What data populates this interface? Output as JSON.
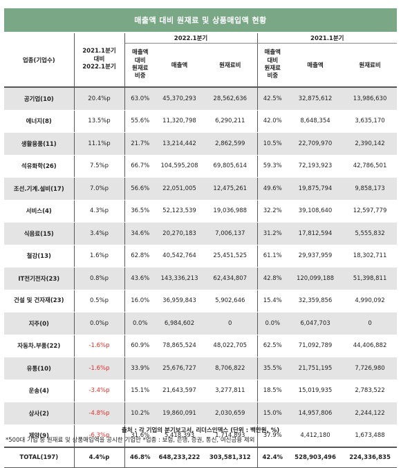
{
  "title": "매출액 대비 원재료 및 상품매입액 현황",
  "header": {
    "industry": "업종(기업수)",
    "change": [
      "2021.1분기",
      "대비",
      "2022.1분기"
    ],
    "period_2022": "2022.1분기",
    "period_2021": "2021.1분기",
    "ratio": [
      "매출액",
      "대비",
      "원재료",
      "비중"
    ],
    "sales": "매출액",
    "material": "원재료비"
  },
  "rows": [
    {
      "industry": "공기업(10)",
      "change": "20.4%p",
      "neg": false,
      "r22": "63.0%",
      "s22": "45,370,293",
      "m22": "28,562,636",
      "r21": "42.5%",
      "s21": "32,875,612",
      "m21": "13,986,630"
    },
    {
      "industry": "에너지(8)",
      "change": "13.5%p",
      "neg": false,
      "r22": "55.6%",
      "s22": "11,320,798",
      "m22": "6,290,211",
      "r21": "42.0%",
      "s21": "8,648,354",
      "m21": "3,635,170"
    },
    {
      "industry": "생활용품(11)",
      "change": "11.1%p",
      "neg": false,
      "r22": "21.7%",
      "s22": "13,214,442",
      "m22": "2,862,599",
      "r21": "10.5%",
      "s21": "22,709,970",
      "m21": "2,390,142"
    },
    {
      "industry": "석유화학(26)",
      "change": "7.5%p",
      "neg": false,
      "r22": "66.7%",
      "s22": "104,595,208",
      "m22": "69,805,614",
      "r21": "59.3%",
      "s21": "72,193,923",
      "m21": "42,786,501"
    },
    {
      "industry": "조선.기계.설비(17)",
      "change": "7.0%p",
      "neg": false,
      "r22": "56.6%",
      "s22": "22,051,005",
      "m22": "12,475,261",
      "r21": "49.6%",
      "s21": "19,875,794",
      "m21": "9,858,173"
    },
    {
      "industry": "서비스(4)",
      "change": "4.3%p",
      "neg": false,
      "r22": "36.5%",
      "s22": "52,123,539",
      "m22": "19,036,988",
      "r21": "32.2%",
      "s21": "39,108,640",
      "m21": "12,597,779"
    },
    {
      "industry": "식음료(15)",
      "change": "3.4%p",
      "neg": false,
      "r22": "34.6%",
      "s22": "20,270,183",
      "m22": "7,006,137",
      "r21": "31.2%",
      "s21": "17,812,594",
      "m21": "5,555,832"
    },
    {
      "industry": "철강(13)",
      "change": "1.6%p",
      "neg": false,
      "r22": "62.8%",
      "s22": "40,542,764",
      "m22": "25,451,525",
      "r21": "61.1%",
      "s21": "29,937,959",
      "m21": "18,302,711"
    },
    {
      "industry": "IT전기전자(23)",
      "change": "0.8%p",
      "neg": false,
      "r22": "43.6%",
      "s22": "143,336,213",
      "m22": "62,434,807",
      "r21": "42.8%",
      "s21": "120,099,188",
      "m21": "51,398,811"
    },
    {
      "industry": "건설 및 건자재(23)",
      "change": "0.5%p",
      "neg": false,
      "r22": "16.0%",
      "s22": "36,959,843",
      "m22": "5,902,646",
      "r21": "15.4%",
      "s21": "32,359,856",
      "m21": "4,990,092"
    },
    {
      "industry": "지주(0)",
      "change": "0.0%p",
      "neg": false,
      "r22": "0.0%",
      "s22": "6,984,602",
      "m22": "0",
      "r21": "0.0%",
      "s21": "6,047,703",
      "m21": "0"
    },
    {
      "industry": "자동차.부품(22)",
      "change": "-1.6%p",
      "neg": true,
      "r22": "60.9%",
      "s22": "78,865,524",
      "m22": "48,022,705",
      "r21": "62.5%",
      "s21": "71,092,789",
      "m21": "44,406,882"
    },
    {
      "industry": "유통(10)",
      "change": "-1.6%p",
      "neg": true,
      "r22": "33.9%",
      "s22": "25,676,727",
      "m22": "8,706,822",
      "r21": "35.5%",
      "s21": "21,751,195",
      "m21": "7,726,980"
    },
    {
      "industry": "운송(4)",
      "change": "-3.4%p",
      "neg": true,
      "r22": "15.1%",
      "s22": "21,643,597",
      "m22": "3,277,811",
      "r21": "18.5%",
      "s21": "15,019,935",
      "m21": "2,783,522"
    },
    {
      "industry": "상사(2)",
      "change": "-4.8%p",
      "neg": true,
      "r22": "10.2%",
      "s22": "19,860,091",
      "m22": "2,030,659",
      "r21": "15.0%",
      "s21": "14,957,806",
      "m21": "2,244,122"
    },
    {
      "industry": "제약(9)",
      "change": "-6.3%p",
      "neg": true,
      "r22": "31.6%",
      "s22": "5,418,393",
      "m22": "1,714,893",
      "r21": "37.9%",
      "s21": "4,412,180",
      "m21": "1,673,488"
    }
  ],
  "total": {
    "industry": "TOTAL(197)",
    "change": "4.4%p",
    "r22": "46.8%",
    "s22": "648,233,222",
    "m22": "303,581,312",
    "r21": "42.4%",
    "s21": "528,903,496",
    "m21": "224,336,835"
  },
  "footer": {
    "source": "출처 : 각 기업의 분기보고서, 리더스인덱스 (단위 : 백만원, %)",
    "note": "*500대 기업 중 원재료 및 상품매입액을 공시한 기업만 *업종 : 보험, 은행, 증권, 통신, 여신금융 제외"
  },
  "colors": {
    "title_bg": "#7aa886",
    "negative": "#e0302a",
    "stripe": "#e4e4e4"
  }
}
